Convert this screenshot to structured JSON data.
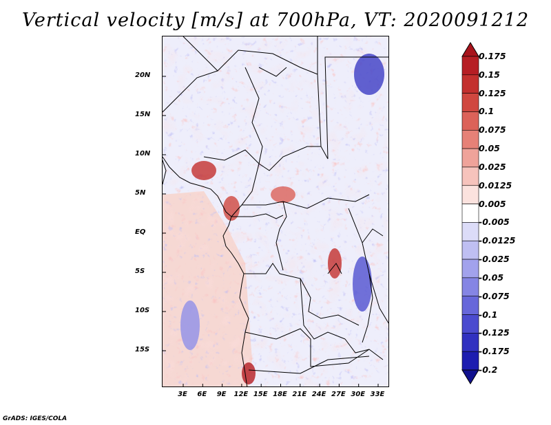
{
  "title": "Vertical velocity [m/s] at 700hPa, VT: 2020091212",
  "y_ticks": [
    "20N",
    "15N",
    "10N",
    "5N",
    "EQ",
    "5S",
    "10S",
    "15S"
  ],
  "x_ticks": [
    "3E",
    "6E",
    "9E",
    "12E",
    "15E",
    "18E",
    "21E",
    "24E",
    "27E",
    "30E",
    "33E"
  ],
  "colorbar": {
    "labels": [
      "0.175",
      "0.15",
      "0.125",
      "0.1",
      "0.075",
      "0.05",
      "0.025",
      "0.0125",
      "0.005",
      "-0.005",
      "-0.0125",
      "-0.025",
      "-0.05",
      "-0.075",
      "-0.1",
      "-0.125",
      "-0.175",
      "-0.2"
    ],
    "colors": [
      "#a8141c",
      "#b61e24",
      "#c3302e",
      "#d0473f",
      "#dc6259",
      "#e68177",
      "#efa39a",
      "#f6c3bc",
      "#fbe2de",
      "#ffffff",
      "#dcdcf8",
      "#bfbff2",
      "#a2a2ec",
      "#8585e4",
      "#6767da",
      "#4b4bcf",
      "#3131c0",
      "#1d1db0",
      "#11118e"
    ],
    "top_arrow_color": "#a8141c",
    "bottom_arrow_color": "#11118e"
  },
  "credit": "GrADS: IGES/COLA"
}
